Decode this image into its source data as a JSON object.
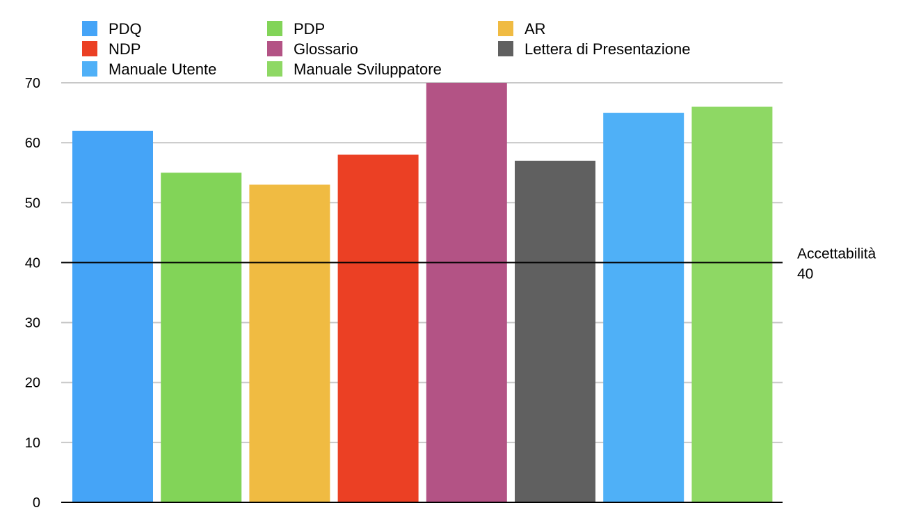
{
  "chart_data": {
    "type": "bar",
    "title": "",
    "xlabel": "",
    "ylabel": "",
    "ylim": [
      0,
      70
    ],
    "yticks": [
      0,
      10,
      20,
      30,
      40,
      50,
      60,
      70
    ],
    "grid": true,
    "legend_position": "top",
    "series": [
      {
        "name": "PDQ",
        "value": 62,
        "color": "#45a4f7"
      },
      {
        "name": "PDP",
        "value": 55,
        "color": "#82d458"
      },
      {
        "name": "AR",
        "value": 53,
        "color": "#f0bb42"
      },
      {
        "name": "NDP",
        "value": 58,
        "color": "#eb4024"
      },
      {
        "name": "Glossario",
        "value": 70,
        "color": "#b35385"
      },
      {
        "name": "Lettera di Presentazione",
        "value": 57,
        "color": "#606060"
      },
      {
        "name": "Manuale Utente",
        "value": 65,
        "color": "#4fb0f7"
      },
      {
        "name": "Manuale Sviluppatore",
        "value": 66,
        "color": "#8ed864"
      }
    ],
    "legend_order": [
      0,
      1,
      2,
      3,
      4,
      5,
      6,
      7
    ],
    "reference_line": {
      "value": 40,
      "label_line1": "Accettabilità",
      "label_line2": "40"
    }
  }
}
